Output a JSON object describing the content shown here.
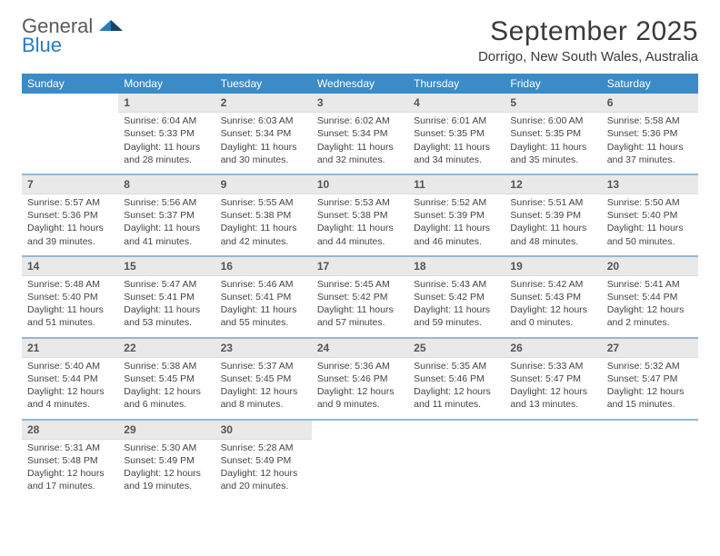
{
  "colors": {
    "header_bg": "#3b8bc7",
    "daynum_bg": "#e9e9e9",
    "separator": "#2f6fa3",
    "text": "#444444",
    "title_text": "#3a3a3a",
    "logo_gray": "#5a5a5a",
    "logo_blue": "#2a7bbf",
    "background": "#ffffff"
  },
  "typography": {
    "title_fontsize": 30,
    "location_fontsize": 15,
    "dow_fontsize": 12,
    "daynum_fontsize": 12,
    "body_fontsize": 10.5
  },
  "logo": {
    "line1": "General",
    "line2": "Blue"
  },
  "title": "September 2025",
  "location": "Dorrigo, New South Wales, Australia",
  "dow": [
    "Sunday",
    "Monday",
    "Tuesday",
    "Wednesday",
    "Thursday",
    "Friday",
    "Saturday"
  ],
  "weeks": [
    [
      null,
      {
        "n": "1",
        "sr": "Sunrise: 6:04 AM",
        "ss": "Sunset: 5:33 PM",
        "dl": "Daylight: 11 hours and 28 minutes."
      },
      {
        "n": "2",
        "sr": "Sunrise: 6:03 AM",
        "ss": "Sunset: 5:34 PM",
        "dl": "Daylight: 11 hours and 30 minutes."
      },
      {
        "n": "3",
        "sr": "Sunrise: 6:02 AM",
        "ss": "Sunset: 5:34 PM",
        "dl": "Daylight: 11 hours and 32 minutes."
      },
      {
        "n": "4",
        "sr": "Sunrise: 6:01 AM",
        "ss": "Sunset: 5:35 PM",
        "dl": "Daylight: 11 hours and 34 minutes."
      },
      {
        "n": "5",
        "sr": "Sunrise: 6:00 AM",
        "ss": "Sunset: 5:35 PM",
        "dl": "Daylight: 11 hours and 35 minutes."
      },
      {
        "n": "6",
        "sr": "Sunrise: 5:58 AM",
        "ss": "Sunset: 5:36 PM",
        "dl": "Daylight: 11 hours and 37 minutes."
      }
    ],
    [
      {
        "n": "7",
        "sr": "Sunrise: 5:57 AM",
        "ss": "Sunset: 5:36 PM",
        "dl": "Daylight: 11 hours and 39 minutes."
      },
      {
        "n": "8",
        "sr": "Sunrise: 5:56 AM",
        "ss": "Sunset: 5:37 PM",
        "dl": "Daylight: 11 hours and 41 minutes."
      },
      {
        "n": "9",
        "sr": "Sunrise: 5:55 AM",
        "ss": "Sunset: 5:38 PM",
        "dl": "Daylight: 11 hours and 42 minutes."
      },
      {
        "n": "10",
        "sr": "Sunrise: 5:53 AM",
        "ss": "Sunset: 5:38 PM",
        "dl": "Daylight: 11 hours and 44 minutes."
      },
      {
        "n": "11",
        "sr": "Sunrise: 5:52 AM",
        "ss": "Sunset: 5:39 PM",
        "dl": "Daylight: 11 hours and 46 minutes."
      },
      {
        "n": "12",
        "sr": "Sunrise: 5:51 AM",
        "ss": "Sunset: 5:39 PM",
        "dl": "Daylight: 11 hours and 48 minutes."
      },
      {
        "n": "13",
        "sr": "Sunrise: 5:50 AM",
        "ss": "Sunset: 5:40 PM",
        "dl": "Daylight: 11 hours and 50 minutes."
      }
    ],
    [
      {
        "n": "14",
        "sr": "Sunrise: 5:48 AM",
        "ss": "Sunset: 5:40 PM",
        "dl": "Daylight: 11 hours and 51 minutes."
      },
      {
        "n": "15",
        "sr": "Sunrise: 5:47 AM",
        "ss": "Sunset: 5:41 PM",
        "dl": "Daylight: 11 hours and 53 minutes."
      },
      {
        "n": "16",
        "sr": "Sunrise: 5:46 AM",
        "ss": "Sunset: 5:41 PM",
        "dl": "Daylight: 11 hours and 55 minutes."
      },
      {
        "n": "17",
        "sr": "Sunrise: 5:45 AM",
        "ss": "Sunset: 5:42 PM",
        "dl": "Daylight: 11 hours and 57 minutes."
      },
      {
        "n": "18",
        "sr": "Sunrise: 5:43 AM",
        "ss": "Sunset: 5:42 PM",
        "dl": "Daylight: 11 hours and 59 minutes."
      },
      {
        "n": "19",
        "sr": "Sunrise: 5:42 AM",
        "ss": "Sunset: 5:43 PM",
        "dl": "Daylight: 12 hours and 0 minutes."
      },
      {
        "n": "20",
        "sr": "Sunrise: 5:41 AM",
        "ss": "Sunset: 5:44 PM",
        "dl": "Daylight: 12 hours and 2 minutes."
      }
    ],
    [
      {
        "n": "21",
        "sr": "Sunrise: 5:40 AM",
        "ss": "Sunset: 5:44 PM",
        "dl": "Daylight: 12 hours and 4 minutes."
      },
      {
        "n": "22",
        "sr": "Sunrise: 5:38 AM",
        "ss": "Sunset: 5:45 PM",
        "dl": "Daylight: 12 hours and 6 minutes."
      },
      {
        "n": "23",
        "sr": "Sunrise: 5:37 AM",
        "ss": "Sunset: 5:45 PM",
        "dl": "Daylight: 12 hours and 8 minutes."
      },
      {
        "n": "24",
        "sr": "Sunrise: 5:36 AM",
        "ss": "Sunset: 5:46 PM",
        "dl": "Daylight: 12 hours and 9 minutes."
      },
      {
        "n": "25",
        "sr": "Sunrise: 5:35 AM",
        "ss": "Sunset: 5:46 PM",
        "dl": "Daylight: 12 hours and 11 minutes."
      },
      {
        "n": "26",
        "sr": "Sunrise: 5:33 AM",
        "ss": "Sunset: 5:47 PM",
        "dl": "Daylight: 12 hours and 13 minutes."
      },
      {
        "n": "27",
        "sr": "Sunrise: 5:32 AM",
        "ss": "Sunset: 5:47 PM",
        "dl": "Daylight: 12 hours and 15 minutes."
      }
    ],
    [
      {
        "n": "28",
        "sr": "Sunrise: 5:31 AM",
        "ss": "Sunset: 5:48 PM",
        "dl": "Daylight: 12 hours and 17 minutes."
      },
      {
        "n": "29",
        "sr": "Sunrise: 5:30 AM",
        "ss": "Sunset: 5:49 PM",
        "dl": "Daylight: 12 hours and 19 minutes."
      },
      {
        "n": "30",
        "sr": "Sunrise: 5:28 AM",
        "ss": "Sunset: 5:49 PM",
        "dl": "Daylight: 12 hours and 20 minutes."
      },
      null,
      null,
      null,
      null
    ]
  ]
}
